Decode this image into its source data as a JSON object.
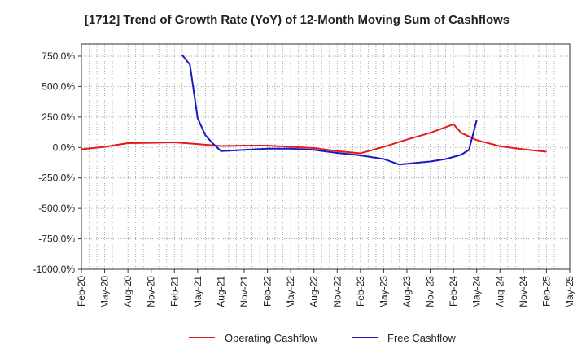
{
  "chart_data": {
    "type": "line",
    "title": "[1712]  Trend of Growth Rate (YoY) of 12-Month Moving Sum of Cashflows",
    "xlabel": "",
    "ylabel": "",
    "x_ticks": [
      "Feb-20",
      "May-20",
      "Aug-20",
      "Nov-20",
      "Feb-21",
      "May-21",
      "Aug-21",
      "Nov-21",
      "Feb-22",
      "May-22",
      "Aug-22",
      "Nov-22",
      "Feb-23",
      "May-23",
      "Aug-23",
      "Nov-23",
      "Feb-24",
      "May-24",
      "Aug-24",
      "Nov-24",
      "Feb-25",
      "May-25"
    ],
    "y_ticks": [
      "750.0%",
      "500.0%",
      "250.0%",
      "0.0%",
      "-250.0%",
      "-500.0%",
      "-750.0%",
      "-1000.0%"
    ],
    "y_tick_values": [
      750,
      500,
      250,
      0,
      -250,
      -500,
      -750,
      -1000
    ],
    "ylim": [
      -1000,
      850
    ],
    "grid": true,
    "legend_position": "bottom",
    "series": [
      {
        "name": "Operating Cashflow",
        "color": "#e31a1c",
        "points": [
          [
            "Feb-20",
            -15
          ],
          [
            "May-20",
            5
          ],
          [
            "Aug-20",
            35
          ],
          [
            "Nov-20",
            38
          ],
          [
            "Feb-21",
            42
          ],
          [
            "May-21",
            28
          ],
          [
            "Aug-21",
            12
          ],
          [
            "Nov-21",
            15
          ],
          [
            "Feb-22",
            15
          ],
          [
            "May-22",
            5
          ],
          [
            "Aug-22",
            -5
          ],
          [
            "Nov-22",
            -30
          ],
          [
            "Feb-23",
            -48
          ],
          [
            "May-23",
            5
          ],
          [
            "Aug-23",
            65
          ],
          [
            "Nov-23",
            120
          ],
          [
            "Feb-24",
            190
          ],
          [
            "Mar-24",
            120
          ],
          [
            "May-24",
            60
          ],
          [
            "Aug-24",
            10
          ],
          [
            "Nov-24",
            -15
          ],
          [
            "Feb-25",
            -35
          ]
        ]
      },
      {
        "name": "Free Cashflow",
        "color": "#1919c8",
        "points": [
          [
            "Mar-21",
            760
          ],
          [
            "Apr-21",
            680
          ],
          [
            "May-21",
            240
          ],
          [
            "Jun-21",
            100
          ],
          [
            "Jul-21",
            30
          ],
          [
            "Aug-21",
            -30
          ],
          [
            "Nov-21",
            -20
          ],
          [
            "Feb-22",
            -10
          ],
          [
            "May-22",
            -10
          ],
          [
            "Aug-22",
            -20
          ],
          [
            "Nov-22",
            -45
          ],
          [
            "Feb-23",
            -65
          ],
          [
            "May-23",
            -95
          ],
          [
            "Jul-23",
            -140
          ],
          [
            "Nov-23",
            -115
          ],
          [
            "Jan-24",
            -95
          ],
          [
            "Mar-24",
            -60
          ],
          [
            "Apr-24",
            -20
          ],
          [
            "May-24",
            225
          ]
        ]
      }
    ]
  }
}
